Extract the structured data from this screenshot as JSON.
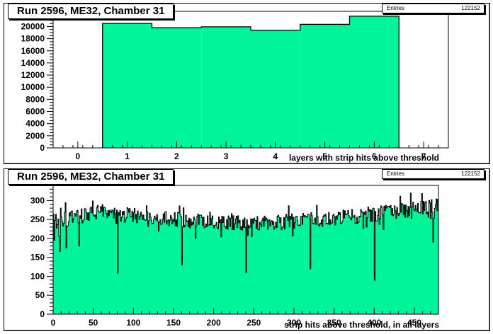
{
  "charts": [
    {
      "title": "Run 2596, ME32, Chamber 31",
      "stats": {
        "label": "Entries",
        "value": "122152"
      },
      "xlabel": "layers with strip hits above threshold"
    },
    {
      "title": "Run 2596, ME32, Chamber 31",
      "stats": {
        "label": "Entries",
        "value": "122152"
      },
      "xlabel": "strip hits above threshold, in all layers"
    }
  ],
  "colors": {
    "fill": "#00f59a",
    "line": "#000000"
  },
  "chart_data": [
    {
      "type": "bar",
      "title": "Run 2596, ME32, Chamber 31",
      "xlabel": "layers with strip hits above threshold",
      "ylabel": "",
      "categories": [
        1,
        2,
        3,
        4,
        5,
        6
      ],
      "values": [
        20500,
        19800,
        19950,
        19400,
        20350,
        21700
      ],
      "xlim": [
        -0.5,
        7.5
      ],
      "ylim": [
        0,
        22500
      ],
      "xticks": [
        "0",
        "1",
        "2",
        "3",
        "4",
        "5",
        "6",
        "7"
      ],
      "yticks": [
        "0",
        "2000",
        "4000",
        "6000",
        "8000",
        "10000",
        "12000",
        "14000",
        "16000",
        "18000",
        "20000",
        "22000"
      ],
      "entries": 122152
    },
    {
      "type": "bar",
      "title": "Run 2596, ME32, Chamber 31",
      "xlabel": "strip hits above threshold, in all layers",
      "ylabel": "",
      "xlim": [
        0,
        480
      ],
      "ylim": [
        0,
        340
      ],
      "xticks": [
        "0",
        "50",
        "100",
        "150",
        "200",
        "250",
        "300",
        "350",
        "400",
        "450"
      ],
      "yticks": [
        "0",
        "50",
        "100",
        "150",
        "200",
        "250",
        "300",
        "350"
      ],
      "bin_width": 1,
      "dips": [
        {
          "x": 1,
          "value": 195
        },
        {
          "x": 8,
          "value": 165
        },
        {
          "x": 16,
          "value": 175
        },
        {
          "x": 32,
          "value": 180
        },
        {
          "x": 80,
          "value": 108
        },
        {
          "x": 160,
          "value": 130
        },
        {
          "x": 240,
          "value": 110
        },
        {
          "x": 320,
          "value": 120
        },
        {
          "x": 400,
          "value": 90
        },
        {
          "x": 473,
          "value": 190
        }
      ],
      "profile": [
        {
          "x": 0,
          "value": 245
        },
        {
          "x": 60,
          "value": 270
        },
        {
          "x": 120,
          "value": 255
        },
        {
          "x": 180,
          "value": 245
        },
        {
          "x": 240,
          "value": 240
        },
        {
          "x": 300,
          "value": 245
        },
        {
          "x": 360,
          "value": 255
        },
        {
          "x": 400,
          "value": 265
        },
        {
          "x": 440,
          "value": 275
        },
        {
          "x": 480,
          "value": 285
        }
      ],
      "entries": 122152
    }
  ]
}
